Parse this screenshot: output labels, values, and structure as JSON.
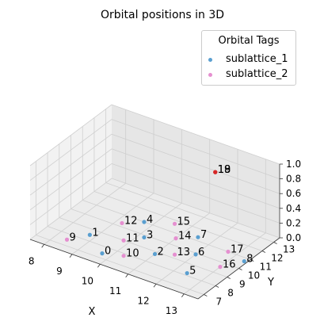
{
  "chart_data": {
    "type": "scatter",
    "title": "Orbital positions in 3D",
    "xlabel": "X",
    "ylabel": "Y",
    "zlabel": "",
    "xlim": [
      7.5,
      13.5
    ],
    "ylim": [
      6.5,
      13.5
    ],
    "zlim": [
      0,
      1
    ],
    "x_ticks": [
      "8",
      "9",
      "10",
      "11",
      "12",
      "13"
    ],
    "y_ticks": [
      "7",
      "8",
      "9",
      "10",
      "11",
      "12",
      "13"
    ],
    "z_ticks": [
      "0.0",
      "0.2",
      "0.4",
      "0.6",
      "0.8",
      "1.0"
    ],
    "grid": true,
    "legend": {
      "title": "Orbital Tags",
      "position": "top-right"
    },
    "series": [
      {
        "name": "sublattice_1",
        "color": "#5a9fd0"
      },
      {
        "name": "sublattice_2",
        "color": "#e58fd0"
      }
    ],
    "points": [
      {
        "label": "0",
        "x": 9.7,
        "y": 7.4,
        "z": 0.0,
        "series": 0
      },
      {
        "label": "1",
        "x": 8.8,
        "y": 8.5,
        "z": 0.0,
        "series": 0
      },
      {
        "label": "2",
        "x": 11.0,
        "y": 8.8,
        "z": 0.0,
        "series": 0
      },
      {
        "label": "3",
        "x": 10.2,
        "y": 9.8,
        "z": 0.0,
        "series": 0
      },
      {
        "label": "4",
        "x": 9.7,
        "y": 11.0,
        "z": 0.0,
        "series": 0
      },
      {
        "label": "5",
        "x": 12.4,
        "y": 8.2,
        "z": 0.0,
        "series": 0
      },
      {
        "label": "6",
        "x": 12.0,
        "y": 9.9,
        "z": 0.0,
        "series": 0
      },
      {
        "label": "7",
        "x": 11.5,
        "y": 11.3,
        "z": 0.0,
        "series": 0
      },
      {
        "label": "8",
        "x": 13.4,
        "y": 10.7,
        "z": 0.0,
        "series": 0
      },
      {
        "label": "9",
        "x": 8.4,
        "y": 7.5,
        "z": 0.0,
        "series": 1
      },
      {
        "label": "10",
        "x": 10.3,
        "y": 7.8,
        "z": 0.0,
        "series": 1
      },
      {
        "label": "11",
        "x": 9.8,
        "y": 9.0,
        "z": 0.0,
        "series": 1
      },
      {
        "label": "12",
        "x": 9.2,
        "y": 10.3,
        "z": 0.0,
        "series": 1
      },
      {
        "label": "13",
        "x": 11.5,
        "y": 9.3,
        "z": 0.0,
        "series": 1
      },
      {
        "label": "14",
        "x": 11.0,
        "y": 10.6,
        "z": 0.0,
        "series": 1
      },
      {
        "label": "15",
        "x": 10.5,
        "y": 11.7,
        "z": 0.0,
        "series": 1
      },
      {
        "label": "16",
        "x": 13.0,
        "y": 9.6,
        "z": 0.0,
        "series": 1
      },
      {
        "label": "17",
        "x": 12.7,
        "y": 11.0,
        "z": 0.0,
        "series": 1
      },
      {
        "label": "18",
        "x": 12.2,
        "y": 11.1,
        "z": 1.0,
        "series": 1,
        "color": "#d62728"
      },
      {
        "label": "19",
        "x": 12.2,
        "y": 11.1,
        "z": 1.0,
        "series": 1,
        "color": "#d62728"
      }
    ]
  }
}
